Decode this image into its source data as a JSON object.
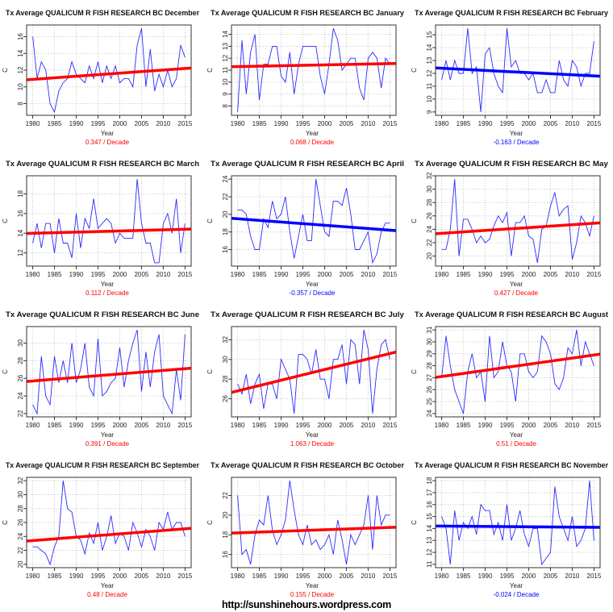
{
  "watermark": "http://sunshinehours.wordpress.com",
  "colors": {
    "series": "#2b2bff",
    "positive_trend": "#ff0000",
    "negative_trend": "#0000ff",
    "grid": "#c8c8c8"
  },
  "chart_data": [
    {
      "type": "line",
      "title": "Tx Average QUALICUM R FISH RESEARCH BC December",
      "xlabel": "Year",
      "ylabel": "C",
      "trend_label": "0.347  / Decade",
      "trend_sign": "positive",
      "x": [
        1980,
        1981,
        1982,
        1983,
        1984,
        1985,
        1986,
        1987,
        1988,
        1989,
        1990,
        1991,
        1992,
        1993,
        1994,
        1995,
        1996,
        1997,
        1998,
        1999,
        2000,
        2001,
        2002,
        2003,
        2004,
        2005,
        2006,
        2007,
        2008,
        2009,
        2010,
        2011,
        2012,
        2013,
        2014,
        2015
      ],
      "y": [
        16,
        11,
        13,
        12,
        8,
        7,
        9.5,
        10.5,
        11,
        13,
        11.5,
        11,
        10.5,
        12.5,
        11,
        13,
        10.5,
        12.5,
        11,
        12.5,
        10.5,
        11,
        11,
        10,
        15,
        17,
        10,
        14.5,
        9.5,
        11.5,
        10,
        12,
        10,
        11,
        15,
        13.5
      ],
      "trend": [
        10.9,
        12.2
      ],
      "yticks": [
        8,
        10,
        12,
        14,
        16
      ],
      "xticks": [
        1980,
        1985,
        1990,
        1995,
        2000,
        2005,
        2010,
        2015
      ],
      "grid": true
    },
    {
      "type": "line",
      "title": "Tx Average QUALICUM R FISH RESEARCH BC January",
      "xlabel": "Year",
      "ylabel": "C",
      "trend_label": "0.068  / Decade",
      "trend_sign": "positive",
      "x": [
        1980,
        1981,
        1982,
        1983,
        1984,
        1985,
        1986,
        1987,
        1988,
        1989,
        1990,
        1991,
        1992,
        1993,
        1994,
        1995,
        1996,
        1997,
        1998,
        1999,
        2000,
        2001,
        2002,
        2003,
        2004,
        2005,
        2006,
        2007,
        2008,
        2009,
        2010,
        2011,
        2012,
        2013,
        2014,
        2015
      ],
      "y": [
        7.5,
        13.5,
        9,
        12.5,
        14,
        8.5,
        11.5,
        11.5,
        13,
        13,
        10.5,
        10,
        12.5,
        9,
        11.5,
        13,
        13,
        13,
        13,
        10.5,
        9,
        11.5,
        14.5,
        13.5,
        11,
        11.5,
        12,
        12,
        9.5,
        8.5,
        12,
        12.5,
        12,
        9.5,
        12,
        11.5
      ],
      "trend": [
        11.3,
        11.55
      ],
      "yticks": [
        8,
        9,
        10,
        11,
        12,
        13,
        14
      ],
      "xticks": [
        1980,
        1985,
        1990,
        1995,
        2000,
        2005,
        2010,
        2015
      ],
      "grid": true
    },
    {
      "type": "line",
      "title": "Tx Average QUALICUM R FISH RESEARCH BC February",
      "xlabel": "Year",
      "ylabel": "C",
      "trend_label": "-0.163  / Decade",
      "trend_sign": "negative",
      "x": [
        1980,
        1981,
        1982,
        1983,
        1984,
        1985,
        1986,
        1987,
        1988,
        1989,
        1990,
        1991,
        1992,
        1993,
        1994,
        1995,
        1996,
        1997,
        1998,
        1999,
        2000,
        2001,
        2002,
        2003,
        2004,
        2005,
        2006,
        2007,
        2008,
        2009,
        2010,
        2011,
        2012,
        2013,
        2014,
        2015
      ],
      "y": [
        11.5,
        13,
        11.5,
        13,
        12,
        12,
        15.5,
        12,
        12.5,
        9,
        13.5,
        14,
        12,
        11,
        10.5,
        15.5,
        12.5,
        13,
        12,
        12,
        11.5,
        12,
        10.5,
        10.5,
        11.5,
        10.5,
        10.5,
        13,
        11.5,
        11,
        13,
        12.5,
        11,
        12,
        12,
        14.5
      ],
      "trend": [
        12.4,
        11.8
      ],
      "yticks": [
        9,
        10,
        11,
        12,
        13,
        14,
        15
      ],
      "xticks": [
        1980,
        1985,
        1990,
        1995,
        2000,
        2005,
        2010,
        2015
      ],
      "grid": true
    },
    {
      "type": "line",
      "title": "Tx Average QUALICUM R FISH RESEARCH BC March",
      "xlabel": "Year",
      "ylabel": "C",
      "trend_label": "0.112  / Decade",
      "trend_sign": "positive",
      "x": [
        1980,
        1981,
        1982,
        1983,
        1984,
        1985,
        1986,
        1987,
        1988,
        1989,
        1990,
        1991,
        1992,
        1993,
        1994,
        1995,
        1996,
        1997,
        1998,
        1999,
        2000,
        2001,
        2002,
        2003,
        2004,
        2005,
        2006,
        2007,
        2008,
        2009,
        2010,
        2011,
        2012,
        2013,
        2014,
        2015
      ],
      "y": [
        13,
        15,
        12.5,
        15,
        15,
        12,
        15.5,
        13,
        13,
        11.5,
        16,
        12.5,
        15.5,
        14.5,
        17.5,
        14.5,
        15,
        15.5,
        15,
        13,
        14,
        13.5,
        13.5,
        13.5,
        19.5,
        15,
        13,
        13,
        11,
        11,
        15,
        16,
        14,
        17.5,
        12,
        15
      ],
      "trend": [
        14.0,
        14.4
      ],
      "yticks": [
        12,
        14,
        16,
        18
      ],
      "xticks": [
        1980,
        1985,
        1990,
        1995,
        2000,
        2005,
        2010,
        2015
      ],
      "grid": true
    },
    {
      "type": "line",
      "title": "Tx Average QUALICUM R FISH RESEARCH BC April",
      "xlabel": "Year",
      "ylabel": "C",
      "trend_label": "-0.357  / Decade",
      "trend_sign": "negative",
      "x": [
        1980,
        1981,
        1982,
        1983,
        1984,
        1985,
        1986,
        1987,
        1988,
        1989,
        1990,
        1991,
        1992,
        1993,
        1994,
        1995,
        1996,
        1997,
        1998,
        1999,
        2000,
        2001,
        2002,
        2003,
        2004,
        2005,
        2006,
        2007,
        2008,
        2009,
        2010,
        2011,
        2012,
        2013,
        2014,
        2015
      ],
      "y": [
        20.5,
        20.5,
        20,
        17.5,
        16,
        16,
        19.5,
        18.5,
        21.5,
        19.5,
        20,
        22,
        18,
        15,
        17.5,
        20,
        17,
        17,
        24,
        21,
        18,
        17.5,
        21.5,
        21.5,
        21,
        23,
        20,
        16,
        16,
        17,
        18,
        14.5,
        15.5,
        18,
        19,
        19
      ],
      "trend": [
        19.5,
        18.2
      ],
      "yticks": [
        16,
        18,
        20,
        22,
        24
      ],
      "xticks": [
        1980,
        1985,
        1990,
        1995,
        2000,
        2005,
        2010,
        2015
      ],
      "grid": true
    },
    {
      "type": "line",
      "title": "Tx Average QUALICUM R FISH RESEARCH BC May",
      "xlabel": "Year",
      "ylabel": "C",
      "trend_label": "0.427  / Decade",
      "trend_sign": "positive",
      "x": [
        1980,
        1981,
        1982,
        1983,
        1984,
        1985,
        1986,
        1987,
        1988,
        1989,
        1990,
        1991,
        1992,
        1993,
        1994,
        1995,
        1996,
        1997,
        1998,
        1999,
        2000,
        2001,
        2002,
        2003,
        2004,
        2005,
        2006,
        2007,
        2008,
        2009,
        2010,
        2011,
        2012,
        2013,
        2014,
        2015
      ],
      "y": [
        21,
        21,
        24,
        31.5,
        20,
        25.5,
        25.5,
        24,
        22,
        23,
        22,
        22.5,
        24.5,
        26,
        25,
        26.5,
        20,
        25,
        25,
        26,
        23,
        22.5,
        19,
        24,
        24.5,
        27.5,
        29.5,
        26,
        27,
        27.5,
        19.5,
        22,
        26,
        25,
        23,
        26
      ],
      "trend": [
        23.4,
        24.9
      ],
      "yticks": [
        20,
        22,
        24,
        26,
        28,
        30,
        32
      ],
      "xticks": [
        1980,
        1985,
        1990,
        1995,
        2000,
        2005,
        2010,
        2015
      ],
      "grid": true
    },
    {
      "type": "line",
      "title": "Tx Average QUALICUM R FISH RESEARCH BC June",
      "xlabel": "Year",
      "ylabel": "C",
      "trend_label": "0.391  / Decade",
      "trend_sign": "positive",
      "x": [
        1980,
        1981,
        1982,
        1983,
        1984,
        1985,
        1986,
        1987,
        1988,
        1989,
        1990,
        1991,
        1992,
        1993,
        1994,
        1995,
        1996,
        1997,
        1998,
        1999,
        2000,
        2001,
        2002,
        2003,
        2004,
        2005,
        2006,
        2007,
        2008,
        2009,
        2010,
        2011,
        2012,
        2013,
        2014,
        2015
      ],
      "y": [
        23,
        22,
        28.5,
        24,
        23,
        28.5,
        25.5,
        28,
        25.5,
        30,
        25.5,
        27,
        30,
        25,
        24,
        30.5,
        24,
        24.5,
        25.5,
        26,
        29.5,
        25,
        28,
        30,
        31.5,
        24.5,
        29,
        25,
        29,
        31,
        24,
        23,
        22,
        27,
        23.5,
        31
      ],
      "trend": [
        25.7,
        27.1
      ],
      "yticks": [
        22,
        24,
        26,
        28,
        30
      ],
      "xticks": [
        1980,
        1985,
        1990,
        1995,
        2000,
        2005,
        2010,
        2015
      ],
      "grid": true
    },
    {
      "type": "line",
      "title": "Tx Average QUALICUM R FISH RESEARCH BC July",
      "xlabel": "Year",
      "ylabel": "C",
      "trend_label": "1.063  / Decade",
      "trend_sign": "positive",
      "x": [
        1980,
        1981,
        1982,
        1983,
        1984,
        1985,
        1986,
        1987,
        1988,
        1989,
        1990,
        1991,
        1992,
        1993,
        1994,
        1995,
        1996,
        1997,
        1998,
        1999,
        2000,
        2001,
        2002,
        2003,
        2004,
        2005,
        2006,
        2007,
        2008,
        2009,
        2010,
        2011,
        2012,
        2013,
        2014,
        2015
      ],
      "y": [
        27.5,
        26.5,
        28.5,
        25.5,
        27.5,
        28.5,
        25,
        27.5,
        27.5,
        26,
        30,
        29,
        28,
        24.5,
        30.5,
        30.5,
        30,
        28.5,
        31,
        28,
        28,
        26,
        30,
        30,
        31.5,
        27.5,
        32,
        31.5,
        27.5,
        33,
        31,
        24.5,
        29,
        31.5,
        32,
        30
      ],
      "trend": [
        26.8,
        30.6
      ],
      "yticks": [
        26,
        28,
        30,
        32
      ],
      "xticks": [
        1980,
        1985,
        1990,
        1995,
        2000,
        2005,
        2010,
        2015
      ],
      "grid": true
    },
    {
      "type": "line",
      "title": "Tx Average QUALICUM R FISH RESEARCH BC August",
      "xlabel": "Year",
      "ylabel": "C",
      "trend_label": "0.51  / Decade",
      "trend_sign": "positive",
      "x": [
        1980,
        1981,
        1982,
        1983,
        1984,
        1985,
        1986,
        1987,
        1988,
        1989,
        1990,
        1991,
        1992,
        1993,
        1994,
        1995,
        1996,
        1997,
        1998,
        1999,
        2000,
        2001,
        2002,
        2003,
        2004,
        2005,
        2006,
        2007,
        2008,
        2009,
        2010,
        2011,
        2012,
        2013,
        2014,
        2015
      ],
      "y": [
        27,
        30.5,
        28,
        26,
        25,
        24,
        27.5,
        29,
        27,
        27.5,
        25,
        30.5,
        27,
        27.5,
        30,
        28,
        27.5,
        25,
        29,
        29,
        27.5,
        27,
        27.5,
        30.5,
        30,
        29,
        26.5,
        26,
        27,
        29.5,
        29,
        31,
        28,
        30,
        29,
        28
      ],
      "trend": [
        27.1,
        28.9
      ],
      "yticks": [
        24,
        25,
        26,
        27,
        28,
        29,
        30,
        31
      ],
      "xticks": [
        1980,
        1985,
        1990,
        1995,
        2000,
        2005,
        2010,
        2015
      ],
      "grid": true
    },
    {
      "type": "line",
      "title": "Tx Average QUALICUM R FISH RESEARCH BC September",
      "xlabel": "Year",
      "ylabel": "C",
      "trend_label": "0.48  / Decade",
      "trend_sign": "positive",
      "x": [
        1980,
        1981,
        1982,
        1983,
        1984,
        1985,
        1986,
        1987,
        1988,
        1989,
        1990,
        1991,
        1992,
        1993,
        1994,
        1995,
        1996,
        1997,
        1998,
        1999,
        2000,
        2001,
        2002,
        2003,
        2004,
        2005,
        2006,
        2007,
        2008,
        2009,
        2010,
        2011,
        2012,
        2013,
        2014,
        2015
      ],
      "y": [
        22.5,
        22.5,
        22,
        21.5,
        20,
        22.5,
        24,
        32,
        28,
        27.5,
        24,
        23.5,
        21.5,
        24.5,
        23,
        26,
        22,
        24,
        27,
        23,
        24.5,
        24,
        22,
        26,
        24.5,
        22.5,
        25,
        24,
        22,
        26,
        25,
        27.5,
        25,
        26,
        26,
        24
      ],
      "trend": [
        23.4,
        25.1
      ],
      "yticks": [
        20,
        22,
        24,
        26,
        28,
        30,
        32
      ],
      "xticks": [
        1980,
        1985,
        1990,
        1995,
        2000,
        2005,
        2010,
        2015
      ],
      "grid": true
    },
    {
      "type": "line",
      "title": "Tx Average QUALICUM R FISH RESEARCH BC October",
      "xlabel": "Year",
      "ylabel": "C",
      "trend_label": "0.155  / Decade",
      "trend_sign": "positive",
      "x": [
        1980,
        1981,
        1982,
        1983,
        1984,
        1985,
        1986,
        1987,
        1988,
        1989,
        1990,
        1991,
        1992,
        1993,
        1994,
        1995,
        1996,
        1997,
        1998,
        1999,
        2000,
        2001,
        2002,
        2003,
        2004,
        2005,
        2006,
        2007,
        2008,
        2009,
        2010,
        2011,
        2012,
        2013,
        2014,
        2015
      ],
      "y": [
        22,
        16,
        16.5,
        15,
        18,
        19.5,
        19,
        22,
        18.5,
        17,
        18,
        19.5,
        23.5,
        20.5,
        18,
        17,
        19,
        17,
        17.5,
        16.5,
        17,
        18,
        16,
        19.5,
        17.5,
        15,
        18,
        17,
        18,
        19,
        22,
        16.5,
        22,
        19,
        20,
        20
      ],
      "trend": [
        18.2,
        18.75
      ],
      "yticks": [
        16,
        18,
        20,
        22
      ],
      "xticks": [
        1980,
        1985,
        1990,
        1995,
        2000,
        2005,
        2010,
        2015
      ],
      "grid": true
    },
    {
      "type": "line",
      "title": "Tx Average QUALICUM R FISH RESEARCH BC November",
      "xlabel": "Year",
      "ylabel": "C",
      "trend_label": "-0.024  / Decade",
      "trend_sign": "negative",
      "x": [
        1980,
        1981,
        1982,
        1983,
        1984,
        1985,
        1986,
        1987,
        1988,
        1989,
        1990,
        1991,
        1992,
        1993,
        1994,
        1995,
        1996,
        1997,
        1998,
        1999,
        2000,
        2001,
        2002,
        2003,
        2004,
        2005,
        2006,
        2007,
        2008,
        2009,
        2010,
        2011,
        2012,
        2013,
        2014,
        2015
      ],
      "y": [
        15,
        14,
        11,
        15.5,
        13,
        14.5,
        14,
        15,
        13.5,
        16,
        15.5,
        15.5,
        13.5,
        14.5,
        13,
        16,
        13,
        14,
        15.5,
        13.5,
        12.5,
        14,
        14,
        11,
        11.5,
        12,
        17.5,
        15,
        14,
        13,
        15,
        12.5,
        13,
        14,
        18,
        13
      ],
      "trend": [
        14.2,
        14.1
      ],
      "yticks": [
        11,
        12,
        13,
        14,
        15,
        16,
        17,
        18
      ],
      "xticks": [
        1980,
        1985,
        1990,
        1995,
        2000,
        2005,
        2010,
        2015
      ],
      "grid": true
    }
  ]
}
